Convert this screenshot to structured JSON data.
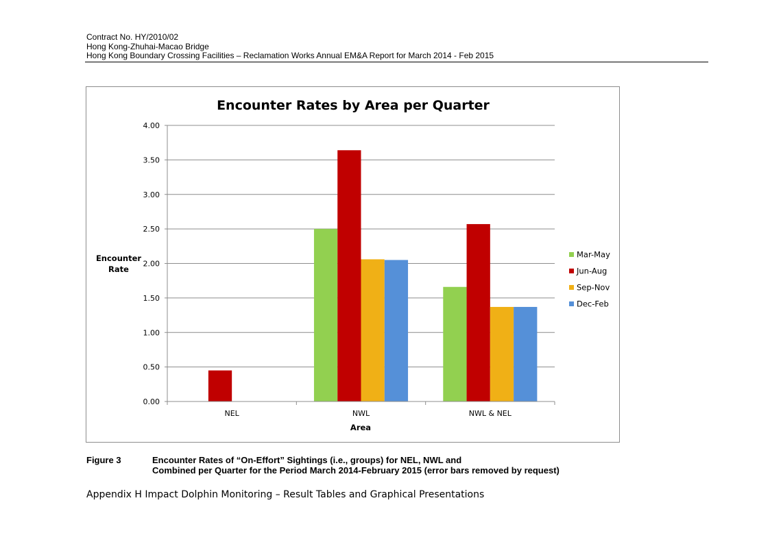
{
  "header": {
    "line1": "Contract No. HY/2010/02",
    "line2": "Hong Kong-Zhuhai-Macao Bridge",
    "line3": "Hong Kong Boundary Crossing Facilities – Reclamation Works   Annual EM&A Report for March 2014 - Feb 2015"
  },
  "figure": {
    "label": "Figure 3",
    "caption_line1": "Encounter Rates of “On-Effort” Sightings (i.e., groups) for NEL, NWL and",
    "caption_line2": "Combined per Quarter for the Period March 2014-February 2015 (error bars removed by request)"
  },
  "footer": {
    "text": "Appendix H Impact Dolphin Monitoring – Result Tables and Graphical Presentations"
  },
  "chart_data": {
    "type": "bar",
    "title": "Encounter Rates by Area per Quarter",
    "xlabel": "Area",
    "ylabel": "Encounter Rate",
    "ylim": [
      0,
      4
    ],
    "ytick_step": 0.5,
    "ytick_decimals": 2,
    "grid": true,
    "legend_position": "right",
    "categories": [
      "NEL",
      "NWL",
      "NWL & NEL"
    ],
    "series": [
      {
        "name": "Mar-May",
        "color": "#92d050",
        "values": [
          0.0,
          2.5,
          1.66
        ]
      },
      {
        "name": "Jun-Aug",
        "color": "#c00000",
        "values": [
          0.45,
          3.64,
          2.57
        ]
      },
      {
        "name": "Sep-Nov",
        "color": "#f0b016",
        "values": [
          0.0,
          2.06,
          1.37
        ]
      },
      {
        "name": "Dec-Feb",
        "color": "#5590d8",
        "values": [
          0.0,
          2.05,
          1.37
        ]
      }
    ]
  }
}
